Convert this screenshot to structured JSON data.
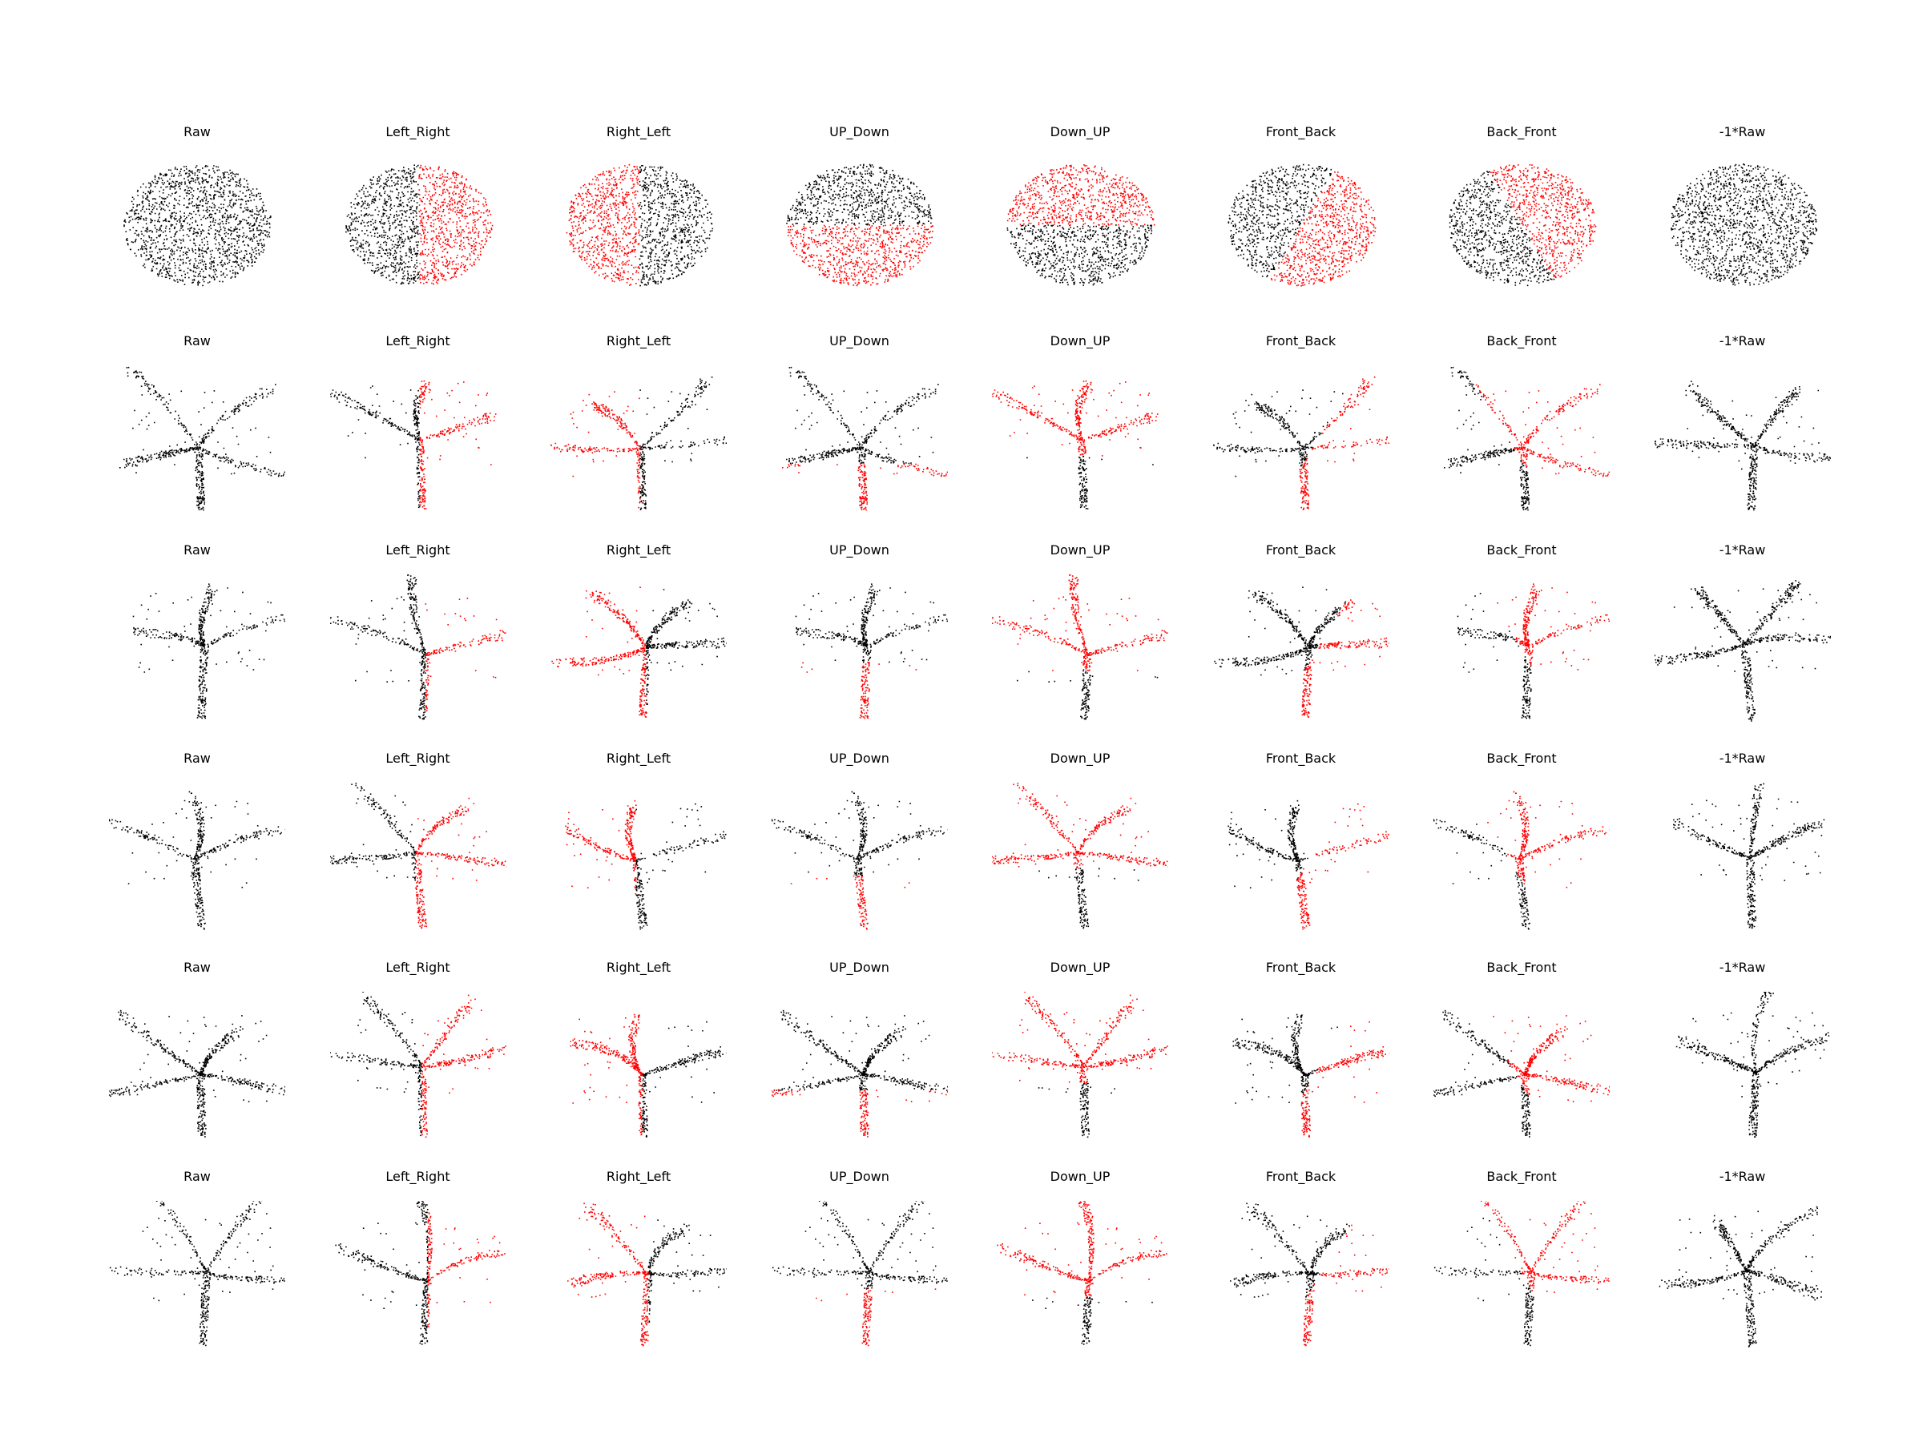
{
  "figure": {
    "colors": {
      "unchanged": "#000000",
      "masked": "#ff0000",
      "background": "#ffffff"
    },
    "column_titles": [
      "Raw",
      "Left_Right",
      "Right_Left",
      "UP_Down",
      "Down_UP",
      "Front_Back",
      "Back_Front",
      "-1*Raw"
    ],
    "row_shapes": [
      "sphere",
      "plant",
      "plant",
      "plant",
      "plant",
      "plant"
    ],
    "column_masks": [
      "none",
      "right-half",
      "left-half",
      "lower-half",
      "upper-half",
      "front-half",
      "back-half",
      "inverted"
    ]
  }
}
